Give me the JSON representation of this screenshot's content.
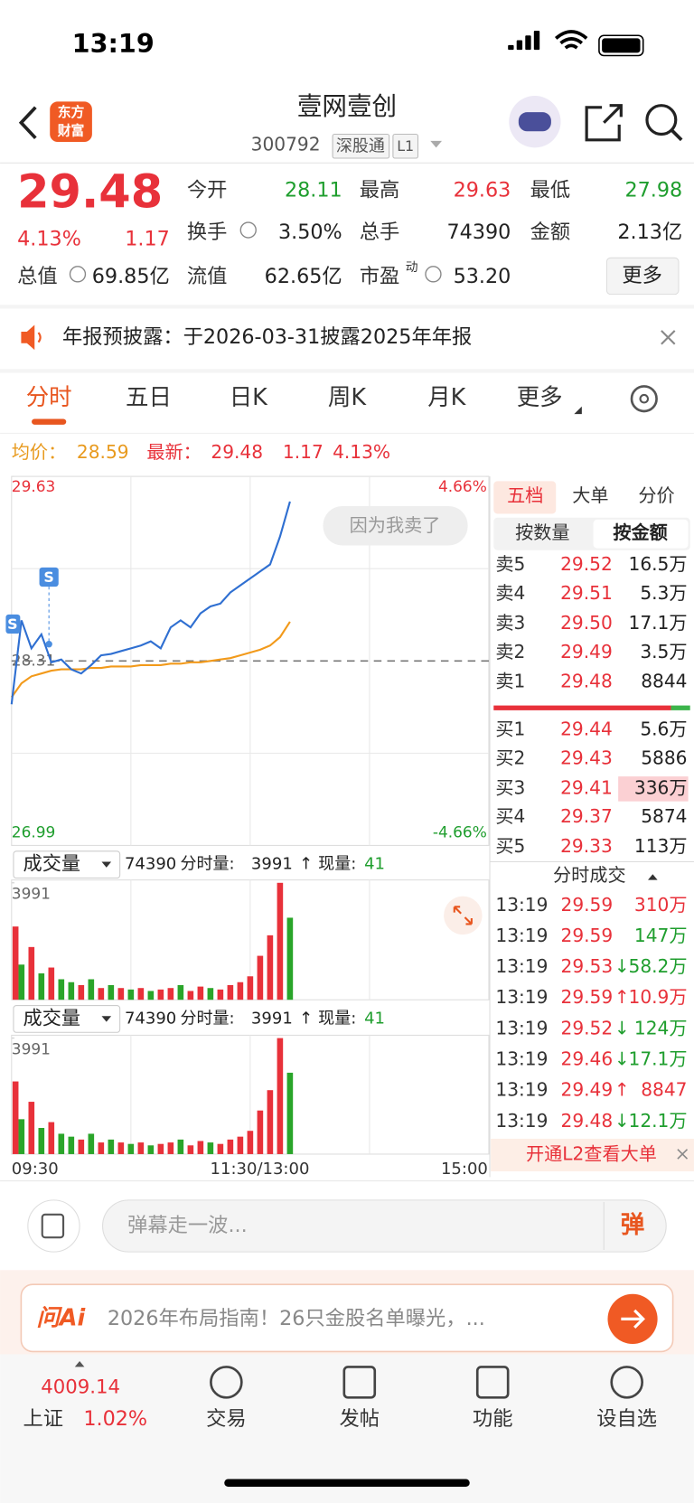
{
  "status_bar": {
    "time": "13:19"
  },
  "header": {
    "name": "壹网壹创",
    "code": "300792",
    "tags": [
      "深股通",
      "L1"
    ],
    "logo": [
      "东方",
      "财富"
    ]
  },
  "quote": {
    "price": "29.48",
    "change_pct": "4.13%",
    "change": "1.17",
    "fields": [
      {
        "label": "今开",
        "value": "28.11",
        "color": "#1f9e2e"
      },
      {
        "label": "最高",
        "value": "29.63",
        "color": "#e8313a"
      },
      {
        "label": "最低",
        "value": "27.98",
        "color": "#1f9e2e"
      },
      {
        "label": "换手",
        "value": "3.50%",
        "color": "#222222"
      },
      {
        "label": "总手",
        "value": "74390",
        "color": "#222222"
      },
      {
        "label": "金额",
        "value": "2.13亿",
        "color": "#222222"
      },
      {
        "label": "总值",
        "value": "69.85亿",
        "color": "#222222"
      },
      {
        "label": "流值",
        "value": "62.65亿",
        "color": "#222222"
      },
      {
        "label": "市盈",
        "value": "53.20",
        "color": "#222222",
        "superscript": "动"
      }
    ],
    "more": "更多"
  },
  "notice": "年报预披露：于2026-03-31披露2025年年报",
  "tabs": [
    "分时",
    "五日",
    "日K",
    "周K",
    "月K",
    "更多"
  ],
  "summary": {
    "avg_label": "均价：",
    "avg": "28.59",
    "latest_label": "最新：",
    "latest": "29.48",
    "change": "1.17",
    "change_pct": "4.13%"
  },
  "intraday": {
    "type": "line",
    "ylim": [
      26.99,
      29.63
    ],
    "yticks": [
      26.99,
      28.31,
      29.63
    ],
    "y2lim": [
      -4.66,
      4.66
    ],
    "y2ticks": [
      {
        "value": -4.66,
        "label": "-4.66%"
      },
      {
        "value": 4.66,
        "label": "4.66%"
      }
    ],
    "x_labels": [
      "09:30",
      "11:30/13:00",
      "15:00"
    ],
    "annotation": "因为我卖了",
    "markers": [
      "S",
      "S"
    ],
    "price": {
      "color": "#2f6fd1",
      "values": [
        28.0,
        28.6,
        28.4,
        28.5,
        28.3,
        28.32,
        28.25,
        28.22,
        28.28,
        28.35,
        28.36,
        28.38,
        28.4,
        28.42,
        28.45,
        28.4,
        28.55,
        28.6,
        28.55,
        28.65,
        28.7,
        28.72,
        28.8,
        28.85,
        28.9,
        28.95,
        29.0,
        29.2,
        29.45,
        null,
        null,
        null,
        null,
        null,
        null,
        null,
        null,
        null,
        null,
        null,
        null,
        null,
        null,
        null,
        null,
        null,
        null,
        null,
        null
      ]
    },
    "average": {
      "color": "#f29a1b",
      "values": [
        28.05,
        28.15,
        28.2,
        28.22,
        28.24,
        28.25,
        28.25,
        28.25,
        28.26,
        28.26,
        28.27,
        28.27,
        28.27,
        28.28,
        28.28,
        28.28,
        28.29,
        28.29,
        28.3,
        28.3,
        28.31,
        28.32,
        28.33,
        28.35,
        28.37,
        28.39,
        28.42,
        28.48,
        28.59,
        null,
        null,
        null,
        null,
        null,
        null,
        null,
        null,
        null,
        null,
        null,
        null,
        null,
        null,
        null,
        null,
        null,
        null,
        null,
        null
      ]
    }
  },
  "volume": {
    "label": "成交量",
    "total": "74390",
    "period_label": "分时量:",
    "period": "3991",
    "arrow": "↑",
    "current_label": "现量:",
    "current": "41",
    "ylim": [
      0,
      3991
    ],
    "yticks": [
      3991
    ],
    "values": [
      2500,
      1200,
      1800,
      900,
      1100,
      700,
      600,
      500,
      700,
      400,
      500,
      400,
      350,
      400,
      300,
      350,
      400,
      500,
      300,
      450,
      400,
      350,
      500,
      600,
      800,
      1500,
      2200,
      3991,
      2800,
      null,
      null,
      null,
      null,
      null,
      null,
      null,
      null,
      null,
      null,
      null,
      null,
      null,
      null,
      null,
      null,
      null,
      null,
      null,
      null
    ],
    "colors": [
      "#e8313a",
      "#2aa52a",
      "#e8313a",
      "#2aa52a",
      "#e8313a",
      "#2aa52a",
      "#2aa52a",
      "#e8313a",
      "#2aa52a",
      "#e8313a",
      "#2aa52a",
      "#e8313a",
      "#2aa52a",
      "#e8313a",
      "#2aa52a",
      "#e8313a",
      "#e8313a",
      "#2aa52a",
      "#e8313a",
      "#e8313a",
      "#2aa52a",
      "#e8313a",
      "#e8313a",
      "#e8313a",
      "#e8313a",
      "#e8313a",
      "#e8313a",
      "#e8313a",
      "#2aa52a",
      null,
      null,
      null,
      null,
      null,
      null,
      null,
      null,
      null,
      null,
      null,
      null,
      null,
      null,
      null,
      null,
      null,
      null,
      null,
      null
    ]
  },
  "order_book": {
    "tabs": [
      "五档",
      "大单",
      "分价"
    ],
    "modes": [
      "按数量",
      "按金额"
    ],
    "asks": [
      {
        "label": "卖5",
        "price": "29.52",
        "volume": "16.5万"
      },
      {
        "label": "卖4",
        "price": "29.51",
        "volume": "5.3万"
      },
      {
        "label": "卖3",
        "price": "29.50",
        "volume": "17.1万"
      },
      {
        "label": "卖2",
        "price": "29.49",
        "volume": "3.5万"
      },
      {
        "label": "卖1",
        "price": "29.48",
        "volume": "8844"
      }
    ],
    "bids": [
      {
        "label": "买1",
        "price": "29.44",
        "volume": "5.6万"
      },
      {
        "label": "买2",
        "price": "29.43",
        "volume": "5886"
      },
      {
        "label": "买3",
        "price": "29.41",
        "volume": "336万"
      },
      {
        "label": "买4",
        "price": "29.37",
        "volume": "5874"
      },
      {
        "label": "买5",
        "price": "29.33",
        "volume": "113万"
      }
    ]
  },
  "trades": {
    "title": "分时成交",
    "banner": "开通L2查看大单",
    "rows": [
      {
        "time": "13:19",
        "price": "29.59",
        "amount": "310万",
        "color": "#e8313a"
      },
      {
        "time": "13:19",
        "price": "29.59",
        "amount": "147万",
        "color": "#1f9e2e"
      },
      {
        "time": "13:19",
        "price": "29.53",
        "arrow": "↓",
        "amount": "58.2万",
        "color": "#1f9e2e"
      },
      {
        "time": "13:19",
        "price": "29.59",
        "arrow": "↑",
        "amount": "10.9万",
        "color": "#e8313a"
      },
      {
        "time": "13:19",
        "price": "29.52",
        "arrow": "↓",
        "amount": "124万",
        "color": "#1f9e2e"
      },
      {
        "time": "13:19",
        "price": "29.46",
        "arrow": "↓",
        "amount": "17.1万",
        "color": "#1f9e2e"
      },
      {
        "time": "13:19",
        "price": "29.49",
        "arrow": "↑",
        "amount": "8847",
        "color": "#e8313a"
      },
      {
        "time": "13:19",
        "price": "29.48",
        "arrow": "↓",
        "amount": "12.1万",
        "color": "#1f9e2e"
      }
    ]
  },
  "comment": {
    "placeholder": "弹幕走一波...",
    "button": "弹"
  },
  "ad": {
    "brand": "问Ai",
    "text": "2026年布局指南！26只金股名单曝光，..."
  },
  "nav": {
    "index_value": "4009.14",
    "index_name": "上证",
    "index_pct": "1.02%",
    "items": [
      "交易",
      "发帖",
      "功能",
      "设自选"
    ]
  }
}
